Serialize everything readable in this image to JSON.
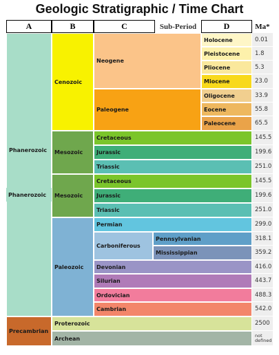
{
  "title": "Geologic Stratigraphic / Time Chart",
  "headers": {
    "a": "A",
    "b": "B",
    "c": "C",
    "sub_period": "Sub-Period",
    "d": "D",
    "ma": "Ma*"
  },
  "eons": {
    "phanerozoic": "Phanerozoic",
    "precambrian": "Precambrian"
  },
  "eras": {
    "cenozoic": "Cenozoic",
    "mesozoic": "Mesozoic",
    "paleozoic": "Paleozoic",
    "proterozoic": "Proterozoic",
    "archean": "Archean"
  },
  "periods": {
    "neogene": "Neogene",
    "paleogene": "Paleogene",
    "cretaceous": "Cretaceous",
    "jurassic": "Jurassic",
    "triassic": "Triassic",
    "permian": "Permian",
    "carboniferous": "Carboniferous",
    "devonian": "Devonian",
    "silurian": "Silurian",
    "ordovician": "Ordovician",
    "cambrian": "Cambrian"
  },
  "sub_periods": {
    "pennsylvanian": "Pennsylvanian",
    "mississippian": "Mississippian"
  },
  "epochs": {
    "holocene": "Holocene",
    "pleistocene": "Pleistocene",
    "pliocene": "Pliocene",
    "miocene": "Miocene",
    "oligocene": "Oligocene",
    "eocene": "Eocene",
    "paleocene": "Paleocene"
  },
  "ma_values": [
    "0.01",
    "1.8",
    "5.3",
    "23.0",
    "33.9",
    "55.8",
    "65.5",
    "145.5",
    "199.6",
    "251.0",
    "145.5",
    "199.6",
    "251.0",
    "299.0",
    "318.1",
    "359.2",
    "416.0",
    "443.7",
    "488.3",
    "542.0",
    "2500",
    "not defined"
  ],
  "colors": {
    "phanerozoic": "#a8ddc8",
    "cenozoic": "#f8f200",
    "mesozoic": "#6fa74d",
    "paleozoic": "#7fb2d4",
    "precambrian": "#c8692b",
    "neogene": "#fbc489",
    "paleogene": "#f8a214",
    "cretaceous": "#7bc52b",
    "jurassic": "#3fae78",
    "triassic": "#5bbfb3",
    "permian": "#62c5df",
    "carboniferous": "#9ec3e0",
    "pennsylvanian": "#5f9fc8",
    "mississippian": "#7b93b9",
    "devonian": "#9a94c6",
    "silurian": "#b07bb8",
    "ordovician": "#f27c9c",
    "cambrian": "#f3866a",
    "proterozoic": "#d7e39a",
    "archean": "#a3b5a6",
    "holocene": "#fef6c7",
    "pleistocene": "#fdf1ab",
    "pliocene": "#fae89c",
    "miocene": "#f8d91c",
    "oligocene": "#f1cf8f",
    "eocene": "#eeb85f",
    "paleocene": "#eaa349",
    "ma_bg": "#eeeeee"
  }
}
